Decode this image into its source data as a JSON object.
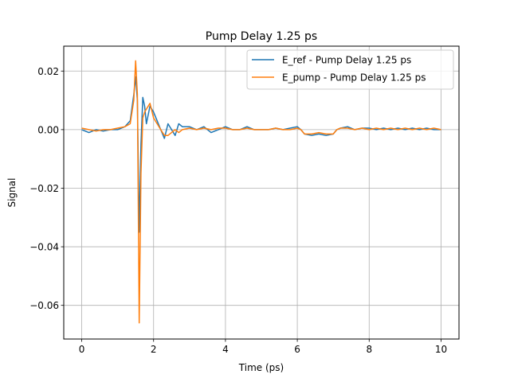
{
  "chart_data": {
    "type": "line",
    "title": "Pump Delay 1.25 ps",
    "xlabel": "Time (ps)",
    "ylabel": "Signal",
    "xlim": [
      -0.5,
      10.5
    ],
    "ylim": [
      -0.0715,
      0.0285
    ],
    "xticks": [
      0,
      2,
      4,
      6,
      8,
      10
    ],
    "xtick_labels": [
      "0",
      "2",
      "4",
      "6",
      "8",
      "10"
    ],
    "yticks": [
      0.02,
      0.0,
      -0.02,
      -0.04,
      -0.06
    ],
    "ytick_labels": [
      "0.02",
      "0.00",
      "−0.02",
      "−0.04",
      "−0.06"
    ],
    "grid": true,
    "legend_position": "upper right",
    "series": [
      {
        "name": "E_ref - Pump Delay 1.25 ps",
        "color": "#1f77b4",
        "x": [
          0,
          0.2,
          0.4,
          0.6,
          0.8,
          1.0,
          1.2,
          1.35,
          1.45,
          1.5,
          1.55,
          1.6,
          1.65,
          1.7,
          1.75,
          1.8,
          1.9,
          2.0,
          2.1,
          2.2,
          2.3,
          2.4,
          2.5,
          2.6,
          2.7,
          2.8,
          3.0,
          3.2,
          3.4,
          3.6,
          3.8,
          4.0,
          4.2,
          4.4,
          4.6,
          4.8,
          5.0,
          5.2,
          5.4,
          5.6,
          5.8,
          6.0,
          6.1,
          6.2,
          6.4,
          6.6,
          6.8,
          7.0,
          7.1,
          7.2,
          7.4,
          7.6,
          7.8,
          8.0,
          8.2,
          8.4,
          8.6,
          8.8,
          9.0,
          9.2,
          9.4,
          9.6,
          9.8,
          10.0
        ],
        "y": [
          0.0,
          -0.001,
          0.0,
          -0.0005,
          0.0,
          0.0,
          0.001,
          0.003,
          0.012,
          0.018,
          0.01,
          -0.035,
          -0.005,
          0.011,
          0.008,
          0.002,
          0.008,
          0.006,
          0.003,
          0.0,
          -0.003,
          0.002,
          0.0,
          -0.002,
          0.002,
          0.001,
          0.001,
          0.0,
          0.001,
          -0.001,
          0.0,
          0.001,
          0.0,
          0.0,
          0.001,
          0.0,
          0.0,
          0.0,
          0.0005,
          0.0,
          0.0005,
          0.001,
          0.0,
          -0.0015,
          -0.002,
          -0.0015,
          -0.002,
          -0.0015,
          0.0,
          0.0005,
          0.001,
          0.0,
          0.0005,
          0.0005,
          0.0,
          0.0005,
          0.0,
          0.0005,
          0.0,
          0.0005,
          0.0,
          0.0005,
          0.0,
          0.0
        ]
      },
      {
        "name": "E_pump - Pump Delay 1.25 ps",
        "color": "#ff7f0e",
        "x": [
          0,
          0.2,
          0.4,
          0.6,
          0.8,
          1.0,
          1.2,
          1.35,
          1.45,
          1.5,
          1.55,
          1.6,
          1.65,
          1.7,
          1.75,
          1.8,
          1.9,
          2.0,
          2.1,
          2.2,
          2.3,
          2.4,
          2.5,
          2.6,
          2.7,
          2.8,
          3.0,
          3.2,
          3.4,
          3.6,
          3.8,
          4.0,
          4.2,
          4.4,
          4.6,
          4.8,
          5.0,
          5.2,
          5.4,
          5.6,
          5.8,
          6.0,
          6.1,
          6.2,
          6.4,
          6.6,
          6.8,
          7.0,
          7.1,
          7.2,
          7.4,
          7.6,
          7.8,
          8.0,
          8.2,
          8.4,
          8.6,
          8.8,
          9.0,
          9.2,
          9.4,
          9.6,
          9.8,
          10.0
        ],
        "y": [
          0.0005,
          0.0,
          -0.0005,
          0.0,
          0.0,
          0.0005,
          0.001,
          0.002,
          0.01,
          0.0235,
          0.012,
          -0.066,
          -0.015,
          0.004,
          0.006,
          0.007,
          0.009,
          0.004,
          0.002,
          0.0,
          -0.002,
          -0.002,
          -0.001,
          0.0,
          -0.001,
          0.0,
          0.0005,
          0.0,
          0.0005,
          0.0,
          0.0005,
          0.0005,
          0.0,
          0.0,
          0.0005,
          0.0,
          0.0,
          0.0,
          0.0005,
          0.0,
          0.0,
          0.0005,
          0.0,
          -0.0015,
          -0.0015,
          -0.001,
          -0.0015,
          -0.0015,
          0.0,
          0.0005,
          0.0005,
          0.0,
          0.0005,
          0.0,
          0.0005,
          0.0,
          0.0005,
          0.0,
          0.0005,
          0.0,
          0.0005,
          0.0,
          0.0005,
          0.0
        ]
      }
    ]
  }
}
